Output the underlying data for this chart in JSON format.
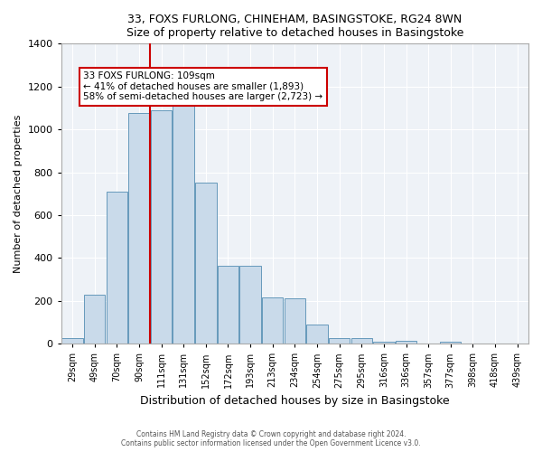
{
  "title": "33, FOXS FURLONG, CHINEHAM, BASINGSTOKE, RG24 8WN",
  "subtitle": "Size of property relative to detached houses in Basingstoke",
  "xlabel": "Distribution of detached houses by size in Basingstoke",
  "ylabel": "Number of detached properties",
  "bar_color": "#c9daea",
  "bar_edge_color": "#6699bb",
  "categories": [
    "29sqm",
    "49sqm",
    "70sqm",
    "90sqm",
    "111sqm",
    "131sqm",
    "152sqm",
    "172sqm",
    "193sqm",
    "213sqm",
    "234sqm",
    "254sqm",
    "275sqm",
    "295sqm",
    "316sqm",
    "336sqm",
    "357sqm",
    "377sqm",
    "398sqm",
    "418sqm",
    "439sqm"
  ],
  "values": [
    25,
    230,
    710,
    1075,
    1090,
    1110,
    750,
    365,
    365,
    215,
    210,
    90,
    25,
    25,
    10,
    15,
    0,
    10,
    0,
    0,
    0
  ],
  "ylim": [
    0,
    1400
  ],
  "yticks": [
    0,
    200,
    400,
    600,
    800,
    1000,
    1200,
    1400
  ],
  "vline_x_index": 4,
  "vline_color": "#cc0000",
  "annotation_text": "33 FOXS FURLONG: 109sqm\n← 41% of detached houses are smaller (1,893)\n58% of semi-detached houses are larger (2,723) →",
  "annotation_box_color": "#ffffff",
  "annotation_box_edge": "#cc0000",
  "footer1": "Contains HM Land Registry data © Crown copyright and database right 2024.",
  "footer2": "Contains public sector information licensed under the Open Government Licence v3.0.",
  "background_color": "#ffffff",
  "plot_bg_color": "#eef2f7",
  "grid_color": "#ffffff"
}
